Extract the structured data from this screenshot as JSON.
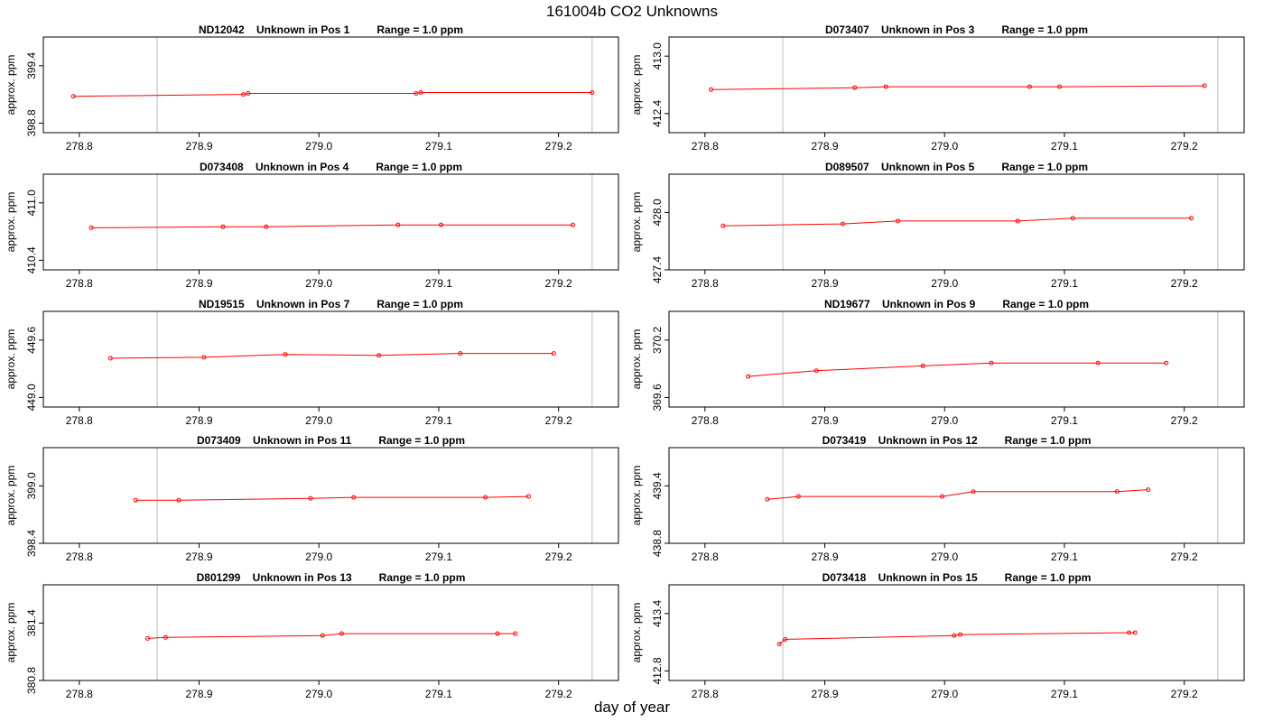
{
  "title": "161004b  CO2 Unknowns",
  "xlabel": "day of year",
  "ylabel": "approx. ppm",
  "colors": {
    "series": "#ff0000",
    "vline": "#c8c8c8",
    "axis": "#000000"
  },
  "chart_data": [
    {
      "type": "line",
      "title": "ND12042    Unknown in Pos 1         Range = 1.0 ppm",
      "xlim": [
        278.77,
        279.25
      ],
      "ylim": [
        398.7,
        399.7
      ],
      "yticks": [
        398.8,
        399.4
      ],
      "xticks": [
        278.8,
        278.9,
        279.0,
        279.1,
        279.2
      ],
      "vlines": [
        278.865,
        279.228
      ],
      "x": [
        278.795,
        278.937,
        278.941,
        279.081,
        279.085,
        279.228
      ],
      "y": [
        399.08,
        399.1,
        399.11,
        399.11,
        399.12,
        399.12
      ]
    },
    {
      "type": "line",
      "title": "D073407    Unknown in Pos 3         Range = 1.0 ppm",
      "xlim": [
        278.77,
        279.25
      ],
      "ylim": [
        412.2,
        413.2
      ],
      "yticks": [
        412.4,
        413.0
      ],
      "xticks": [
        278.8,
        278.9,
        279.0,
        279.1,
        279.2
      ],
      "vlines": [
        278.865,
        279.228
      ],
      "x": [
        278.805,
        278.925,
        278.951,
        279.071,
        279.096,
        279.217
      ],
      "y": [
        412.65,
        412.67,
        412.68,
        412.68,
        412.68,
        412.69
      ]
    },
    {
      "type": "line",
      "title": "D073408    Unknown in Pos 4         Range = 1.0 ppm",
      "xlim": [
        278.77,
        279.25
      ],
      "ylim": [
        410.3,
        411.3
      ],
      "yticks": [
        410.4,
        411.0
      ],
      "xticks": [
        278.8,
        278.9,
        279.0,
        279.1,
        279.2
      ],
      "vlines": [
        278.865,
        279.228
      ],
      "x": [
        278.81,
        278.92,
        278.956,
        279.066,
        279.102,
        279.212
      ],
      "y": [
        410.74,
        410.75,
        410.75,
        410.77,
        410.77,
        410.77
      ]
    },
    {
      "type": "line",
      "title": "D089507    Unknown in Pos 5         Range = 1.0 ppm",
      "xlim": [
        278.77,
        279.25
      ],
      "ylim": [
        427.4,
        428.4
      ],
      "yticks": [
        427.4,
        428.0
      ],
      "xticks": [
        278.8,
        278.9,
        279.0,
        279.1,
        279.2
      ],
      "vlines": [
        278.865,
        279.228
      ],
      "x": [
        278.815,
        278.915,
        278.961,
        279.061,
        279.107,
        279.206
      ],
      "y": [
        427.86,
        427.88,
        427.91,
        427.91,
        427.94,
        427.94
      ]
    },
    {
      "type": "line",
      "title": "ND19515    Unknown in Pos 7         Range = 1.0 ppm",
      "xlim": [
        278.77,
        279.25
      ],
      "ylim": [
        448.9,
        449.9
      ],
      "yticks": [
        449.0,
        449.6
      ],
      "xticks": [
        278.8,
        278.9,
        279.0,
        279.1,
        279.2
      ],
      "vlines": [
        278.865,
        279.228
      ],
      "x": [
        278.826,
        278.904,
        278.972,
        279.05,
        279.118,
        279.196
      ],
      "y": [
        449.41,
        449.42,
        449.45,
        449.44,
        449.46,
        449.46
      ]
    },
    {
      "type": "line",
      "title": "ND19677    Unknown in Pos 9         Range = 1.0 ppm",
      "xlim": [
        278.77,
        279.25
      ],
      "ylim": [
        369.5,
        370.5
      ],
      "yticks": [
        369.6,
        370.2
      ],
      "xticks": [
        278.8,
        278.9,
        279.0,
        279.1,
        279.2
      ],
      "vlines": [
        278.865,
        279.228
      ],
      "x": [
        278.836,
        278.893,
        278.982,
        279.039,
        279.128,
        279.185
      ],
      "y": [
        369.82,
        369.88,
        369.93,
        369.96,
        369.96,
        369.96
      ]
    },
    {
      "type": "line",
      "title": "D073409    Unknown in Pos 11         Range = 1.0 ppm",
      "xlim": [
        278.77,
        279.25
      ],
      "ylim": [
        398.4,
        399.4
      ],
      "yticks": [
        398.4,
        399.0
      ],
      "xticks": [
        278.8,
        278.9,
        279.0,
        279.1,
        279.2
      ],
      "vlines": [
        278.865,
        279.228
      ],
      "x": [
        278.847,
        278.883,
        278.993,
        279.029,
        279.139,
        279.175
      ],
      "y": [
        398.85,
        398.85,
        398.87,
        398.88,
        398.88,
        398.89
      ]
    },
    {
      "type": "line",
      "title": "D073419    Unknown in Pos 12         Range = 1.0 ppm",
      "xlim": [
        278.77,
        279.25
      ],
      "ylim": [
        438.8,
        439.8
      ],
      "yticks": [
        438.8,
        439.4
      ],
      "xticks": [
        278.8,
        278.9,
        279.0,
        279.1,
        279.2
      ],
      "vlines": [
        278.865,
        279.228
      ],
      "x": [
        278.852,
        278.878,
        278.998,
        279.024,
        279.144,
        279.17
      ],
      "y": [
        439.26,
        439.29,
        439.29,
        439.34,
        439.34,
        439.36
      ]
    },
    {
      "type": "line",
      "title": "D801299    Unknown in Pos 13         Range = 1.0 ppm",
      "xlim": [
        278.77,
        279.25
      ],
      "ylim": [
        380.8,
        381.8
      ],
      "yticks": [
        380.8,
        381.4
      ],
      "xticks": [
        278.8,
        278.9,
        279.0,
        279.1,
        279.2
      ],
      "vlines": [
        278.865,
        279.228
      ],
      "x": [
        278.857,
        278.872,
        279.003,
        279.019,
        279.149,
        279.164
      ],
      "y": [
        381.24,
        381.25,
        381.27,
        381.29,
        381.29,
        381.29
      ]
    },
    {
      "type": "line",
      "title": "D073418    Unknown in Pos 15         Range = 1.0 ppm",
      "xlim": [
        278.77,
        279.25
      ],
      "ylim": [
        412.7,
        413.7
      ],
      "yticks": [
        412.8,
        413.4
      ],
      "xticks": [
        278.8,
        278.9,
        279.0,
        279.1,
        279.2
      ],
      "vlines": [
        278.865,
        279.228
      ],
      "x": [
        278.862,
        278.867,
        279.008,
        279.013,
        279.154,
        279.159
      ],
      "y": [
        413.08,
        413.13,
        413.17,
        413.18,
        413.2,
        413.2
      ]
    }
  ]
}
